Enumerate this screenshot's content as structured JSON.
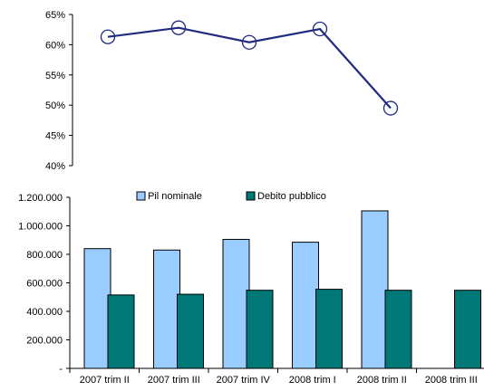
{
  "chart_data": [
    {
      "type": "line",
      "ylim": [
        40,
        65
      ],
      "y_ticks": [
        "40%",
        "45%",
        "50%",
        "55%",
        "60%",
        "65%"
      ],
      "series": [
        {
          "values": [
            61.3,
            62.8,
            60.4,
            62.6,
            49.5
          ],
          "color": "#1f2a80",
          "marker": "open-circle"
        }
      ],
      "points_count": 5
    },
    {
      "type": "bar",
      "categories": [
        "2007 trim II",
        "2007 trim III",
        "2007 trim IV",
        "2008 trim I",
        "2008 trim II",
        "2008 trim III"
      ],
      "ylim": [
        0,
        1200000
      ],
      "y_ticks": [
        "-",
        "200.000",
        "400.000",
        "600.000",
        "800.000",
        "1.000.000",
        "1.200.000"
      ],
      "legend_position": "top",
      "series": [
        {
          "name": "Pil nominale",
          "color": "#99ccff",
          "values": [
            840000,
            830000,
            905000,
            885000,
            1105000,
            null
          ]
        },
        {
          "name": "Debito pubblico",
          "color": "#007878",
          "values": [
            515000,
            520000,
            548000,
            555000,
            548000,
            548000
          ]
        }
      ]
    }
  ]
}
